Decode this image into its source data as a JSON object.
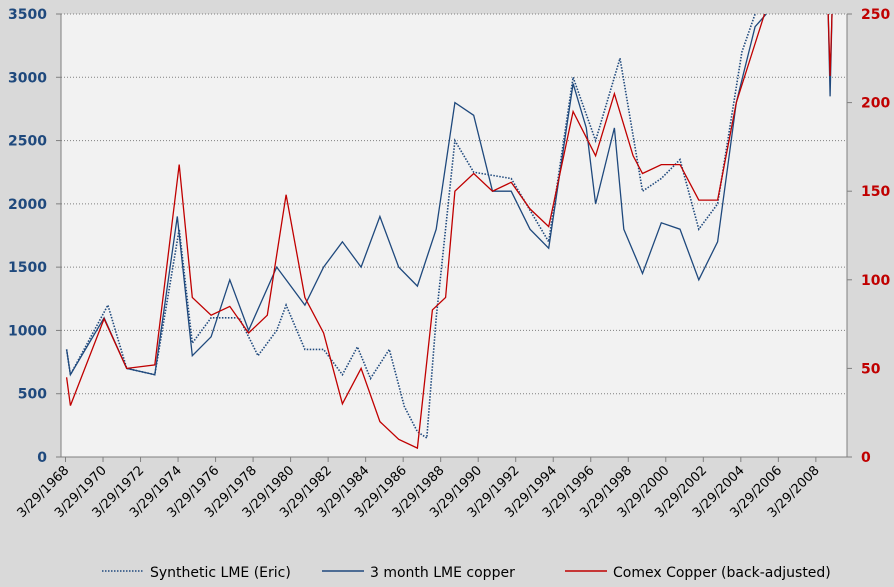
{
  "chart_data": {
    "type": "line",
    "title": "",
    "grid": true,
    "legend_placement": "bottom",
    "colors": {
      "synthetic": "#1f497d",
      "lme": "#1f497d",
      "comex": "#c00000",
      "plot_bg": "#f2f2f2",
      "bg": "#d9d9d9"
    },
    "y_left": {
      "range": [
        0,
        3500
      ],
      "ticks": [
        "0",
        "500",
        "1000",
        "1500",
        "2000",
        "2500",
        "3000",
        "3500"
      ]
    },
    "y_right": {
      "range": [
        0,
        250
      ],
      "ticks": [
        "0",
        "50",
        "100",
        "150",
        "200",
        "250"
      ]
    },
    "x_range": [
      1968,
      2009.9
    ],
    "x_ticks": [
      "3/29/1968",
      "3/29/1970",
      "3/29/1972",
      "3/29/1974",
      "3/29/1976",
      "3/29/1978",
      "3/29/1980",
      "3/29/1982",
      "3/29/1984",
      "3/29/1986",
      "3/29/1988",
      "3/29/1990",
      "3/29/1992",
      "3/29/1994",
      "3/29/1996",
      "3/29/1998",
      "3/29/2000",
      "3/29/2002",
      "3/29/2004",
      "3/29/2006",
      "3/29/2008"
    ],
    "series": [
      {
        "name": "Synthetic LME (Eric)",
        "axis": "left",
        "style": "dotted",
        "points": [
          [
            1968.3,
            850
          ],
          [
            1968.5,
            650
          ],
          [
            1970.5,
            1200
          ],
          [
            1971.5,
            700
          ],
          [
            1973,
            650
          ],
          [
            1974.3,
            1800
          ],
          [
            1975,
            900
          ],
          [
            1976,
            1100
          ],
          [
            1977.5,
            1100
          ],
          [
            1978.5,
            800
          ],
          [
            1979.5,
            1000
          ],
          [
            1980,
            1200
          ],
          [
            1981,
            850
          ],
          [
            1982,
            850
          ],
          [
            1983,
            650
          ],
          [
            1983.8,
            870
          ],
          [
            1984.5,
            620
          ],
          [
            1985.5,
            850
          ],
          [
            1986.3,
            400
          ],
          [
            1987,
            200
          ],
          [
            1987.5,
            150
          ],
          [
            1988,
            1100
          ],
          [
            1989,
            2500
          ],
          [
            1990,
            2250
          ],
          [
            1992,
            2200
          ],
          [
            1994,
            1700
          ],
          [
            1995.3,
            3000
          ],
          [
            1996.5,
            2500
          ],
          [
            1997.8,
            3150
          ],
          [
            1999,
            2100
          ],
          [
            2000,
            2200
          ],
          [
            2001,
            2350
          ],
          [
            2002,
            1800
          ],
          [
            2003,
            2000
          ],
          [
            2004.3,
            3200
          ],
          [
            2005,
            3500
          ]
        ]
      },
      {
        "name": "3 month LME copper",
        "axis": "left",
        "style": "solid",
        "points": [
          [
            1968.3,
            850
          ],
          [
            1968.5,
            650
          ],
          [
            1970.3,
            1100
          ],
          [
            1971.5,
            700
          ],
          [
            1973,
            650
          ],
          [
            1974.2,
            1900
          ],
          [
            1975,
            800
          ],
          [
            1976,
            950
          ],
          [
            1977,
            1400
          ],
          [
            1978,
            1000
          ],
          [
            1979.5,
            1500
          ],
          [
            1980,
            1400
          ],
          [
            1981,
            1200
          ],
          [
            1982,
            1500
          ],
          [
            1983,
            1700
          ],
          [
            1984,
            1500
          ],
          [
            1985,
            1900
          ],
          [
            1986,
            1500
          ],
          [
            1987,
            1350
          ],
          [
            1988,
            1800
          ],
          [
            1989,
            2800
          ],
          [
            1990,
            2700
          ],
          [
            1991,
            2100
          ],
          [
            1992,
            2100
          ],
          [
            1993,
            1800
          ],
          [
            1994,
            1650
          ],
          [
            1995.3,
            2950
          ],
          [
            1996,
            2600
          ],
          [
            1996.5,
            2000
          ],
          [
            1997.5,
            2600
          ],
          [
            1998,
            1800
          ],
          [
            1999,
            1450
          ],
          [
            2000,
            1850
          ],
          [
            2001,
            1800
          ],
          [
            2002,
            1400
          ],
          [
            2003,
            1700
          ],
          [
            2004,
            2800
          ],
          [
            2005,
            3400
          ],
          [
            2005.6,
            3500
          ],
          null,
          [
            2008.9,
            3500
          ],
          [
            2009.0,
            2850
          ],
          [
            2009.1,
            3500
          ]
        ]
      },
      {
        "name": "Comex Copper (back-adjusted)",
        "axis": "right",
        "style": "solid",
        "points": [
          [
            1968.3,
            45
          ],
          [
            1968.5,
            29
          ],
          [
            1970.3,
            78
          ],
          [
            1971.5,
            50
          ],
          [
            1973,
            52
          ],
          [
            1974.3,
            165
          ],
          [
            1975,
            90
          ],
          [
            1976,
            80
          ],
          [
            1977,
            85
          ],
          [
            1978,
            70
          ],
          [
            1979,
            80
          ],
          [
            1980,
            148
          ],
          [
            1981,
            90
          ],
          [
            1982,
            70
          ],
          [
            1983,
            30
          ],
          [
            1984,
            50
          ],
          [
            1985,
            20
          ],
          [
            1986,
            10
          ],
          [
            1987,
            5
          ],
          [
            1987.8,
            83
          ],
          [
            1988.5,
            90
          ],
          [
            1989,
            150
          ],
          [
            1990,
            160
          ],
          [
            1991,
            150
          ],
          [
            1992,
            155
          ],
          [
            1993,
            140
          ],
          [
            1994,
            130
          ],
          [
            1995.3,
            195
          ],
          [
            1996.5,
            170
          ],
          [
            1997.5,
            205
          ],
          [
            1998.5,
            170
          ],
          [
            1999,
            160
          ],
          [
            2000,
            165
          ],
          [
            2001,
            165
          ],
          [
            2002,
            145
          ],
          [
            2003,
            145
          ],
          [
            2004,
            200
          ],
          [
            2005.5,
            250
          ],
          null,
          [
            2008.9,
            250
          ],
          [
            2009.0,
            215
          ],
          [
            2009.1,
            250
          ]
        ]
      }
    ]
  }
}
